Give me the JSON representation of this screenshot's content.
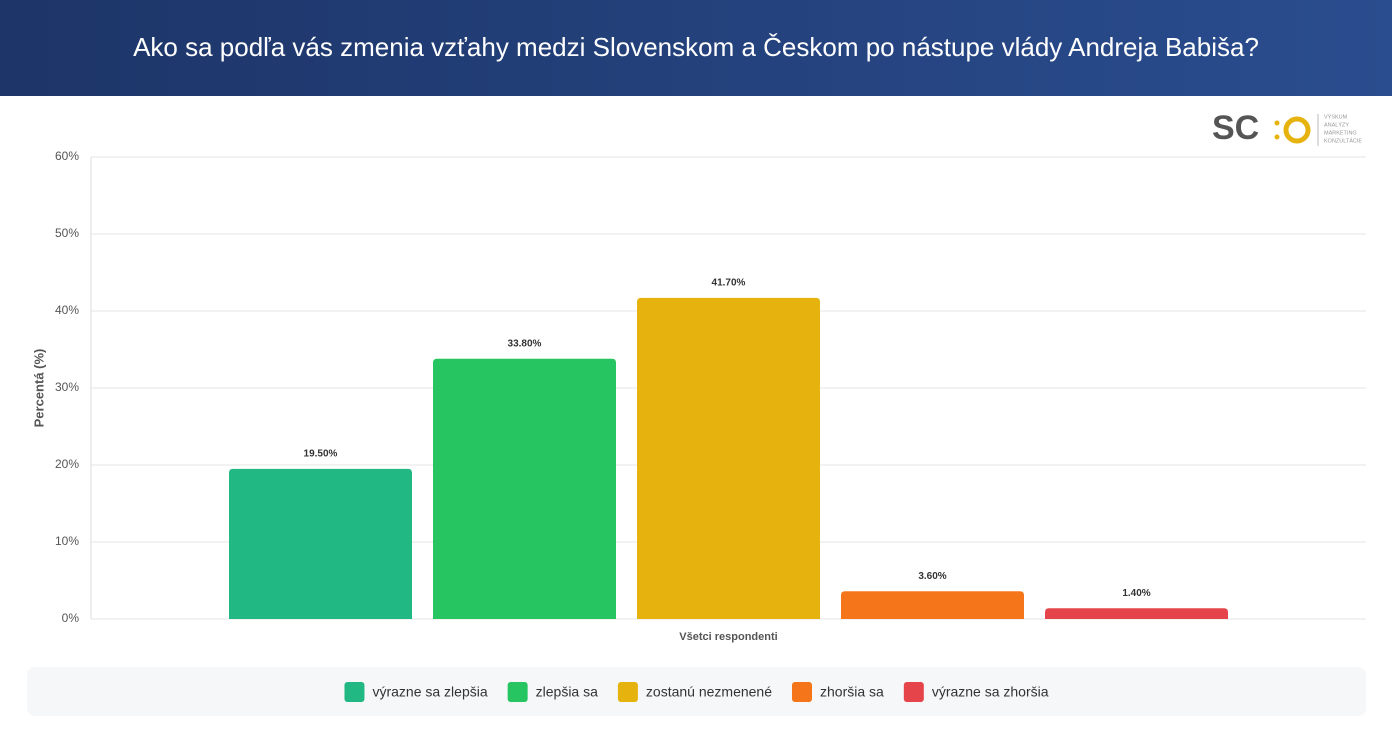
{
  "chart_data": {
    "type": "bar",
    "title": "Ako sa podľa vás zmenia vzťahy medzi Slovenskom a Českom po nástupe vlády Andreja Babiša?",
    "logo": {
      "name": "SC",
      "lines": [
        "VÝSKUM",
        "ANALÝZY",
        "MARKETING",
        "KONZULTÁCIE"
      ]
    },
    "ylabel": "Percentá (%)",
    "categories": [
      "Všetci respondenti"
    ],
    "series": [
      {
        "name": "výrazne sa zlepšia",
        "color": "#22b883",
        "values": [
          19.5
        ],
        "value_labels": [
          "19.50%"
        ]
      },
      {
        "name": "zlepšia sa",
        "color": "#26c561",
        "values": [
          33.8
        ],
        "value_labels": [
          "33.80%"
        ]
      },
      {
        "name": "zostanú nezmenené",
        "color": "#e6b30e",
        "values": [
          41.7
        ],
        "value_labels": [
          "41.70%"
        ]
      },
      {
        "name": "zhoršia sa",
        "color": "#f5761a",
        "values": [
          3.6
        ],
        "value_labels": [
          "3.60%"
        ]
      },
      {
        "name": "výrazne sa zhoršia",
        "color": "#e5454a",
        "values": [
          1.4
        ],
        "value_labels": [
          "1.40%"
        ]
      }
    ],
    "ylim": [
      0,
      60
    ],
    "yticks": [
      {
        "value": 0,
        "label": "0%"
      },
      {
        "value": 10,
        "label": "10%"
      },
      {
        "value": 20,
        "label": "20%"
      },
      {
        "value": 30,
        "label": "30%"
      },
      {
        "value": 40,
        "label": "40%"
      },
      {
        "value": 50,
        "label": "50%"
      },
      {
        "value": 60,
        "label": "60%"
      }
    ],
    "grid": true
  }
}
